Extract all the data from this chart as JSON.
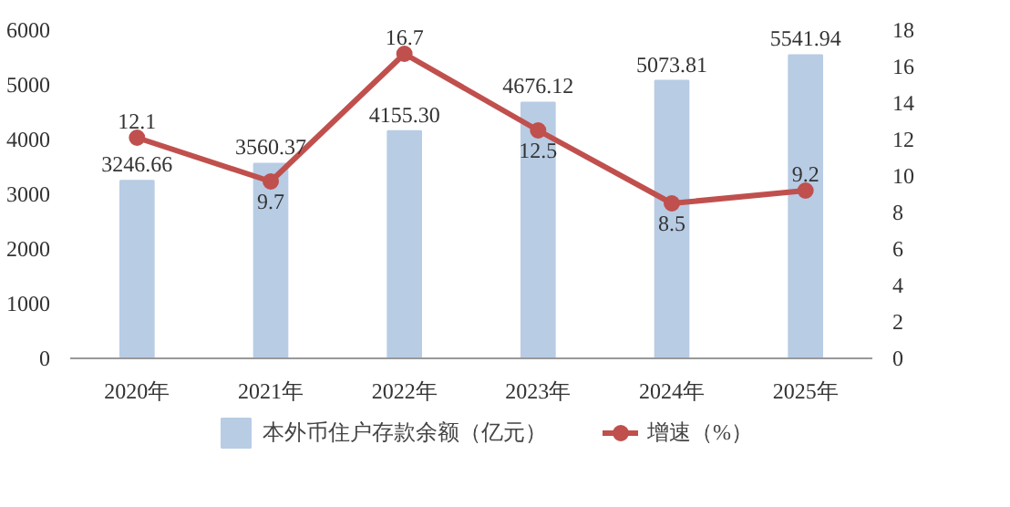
{
  "chart_data": {
    "type": "bar",
    "categories": [
      "2020年",
      "2021年",
      "2022年",
      "2023年",
      "2024年",
      "2025年"
    ],
    "series": [
      {
        "name": "本外币住户存款余额（亿元）",
        "color": "#b8cce4",
        "values": [
          3246.66,
          3560.37,
          4155.3,
          4676.12,
          5073.81,
          5541.94
        ],
        "value_labels": [
          "3246.66",
          "3560.37",
          "4155.30",
          "4676.12",
          "5073.81",
          "5541.94"
        ]
      },
      {
        "name": "增速（%）",
        "type": "line",
        "axis": "y2",
        "color": "#c0504d",
        "values": [
          12.1,
          9.7,
          16.7,
          12.5,
          8.5,
          9.2
        ],
        "value_labels": [
          "12.1",
          "9.7",
          "16.7",
          "12.5",
          "8.5",
          "9.2"
        ]
      }
    ],
    "ylim": [
      0,
      6000
    ],
    "yticks": [
      0,
      1000,
      2000,
      3000,
      4000,
      5000,
      6000
    ],
    "y2lim": [
      0,
      18
    ],
    "y2ticks": [
      0,
      2,
      4,
      6,
      8,
      10,
      12,
      14,
      16,
      18
    ],
    "grid": false,
    "legend": "bottom",
    "marker": "circle",
    "line_style": "solid"
  }
}
